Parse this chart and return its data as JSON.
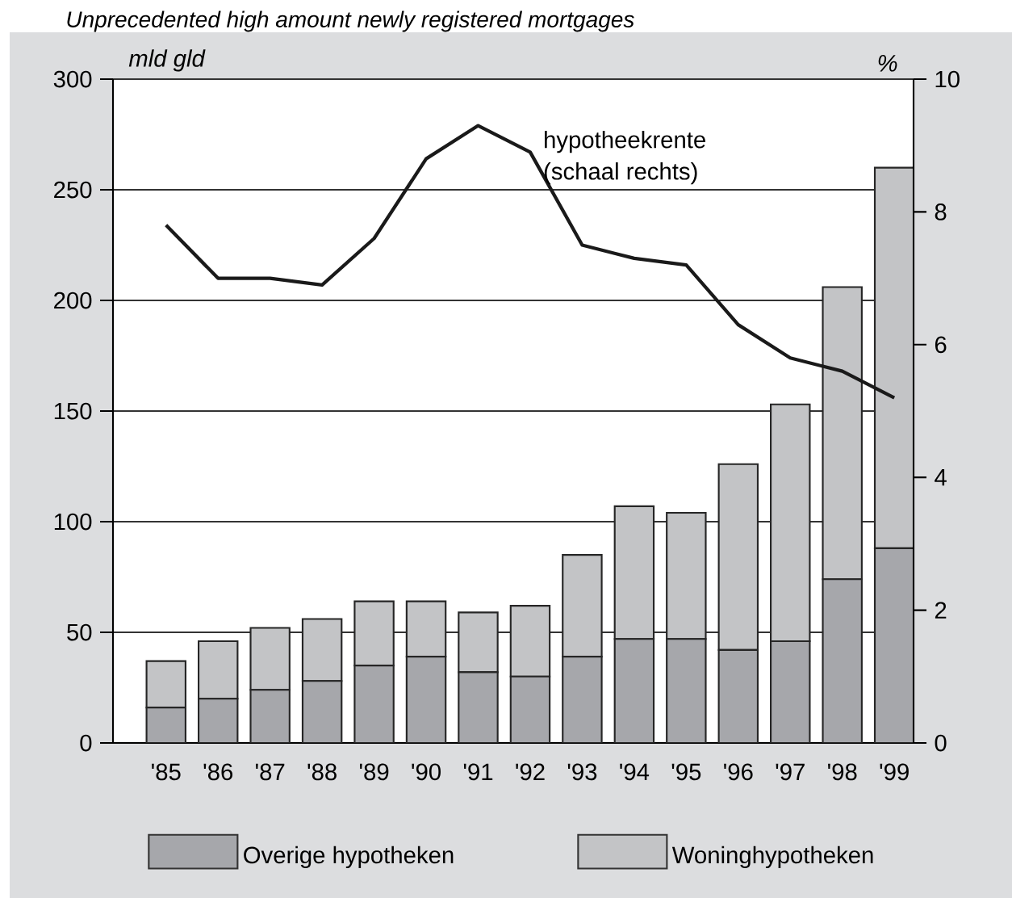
{
  "chart_data": {
    "type": "bar",
    "title": "Unprecedented high amount newly registered mortgages",
    "categories": [
      "'85",
      "'86",
      "'87",
      "'88",
      "'89",
      "'90",
      "'91",
      "'92",
      "'93",
      "'94",
      "'95",
      "'96",
      "'97",
      "'98",
      "'99"
    ],
    "stacked": true,
    "ylabel": "mld gld",
    "y2label": "%",
    "ylim": [
      0,
      300
    ],
    "yticks": [
      0,
      50,
      100,
      150,
      200,
      250,
      300
    ],
    "y2lim": [
      0,
      10
    ],
    "y2ticks": [
      0,
      2,
      4,
      6,
      8,
      10
    ],
    "grid": "y",
    "legend": "bottom",
    "annotations": [
      "(schaal rechts)"
    ],
    "series": [
      {
        "name": "Overige hypotheken",
        "color": "#a6a7ab",
        "values": [
          16,
          20,
          24,
          28,
          35,
          39,
          32,
          30,
          39,
          47,
          47,
          42,
          46,
          74,
          88
        ]
      },
      {
        "name": "Woninghypotheken",
        "color": "#c3c4c6",
        "values": [
          21,
          26,
          28,
          28,
          29,
          25,
          27,
          32,
          46,
          60,
          57,
          84,
          107,
          132,
          172
        ]
      },
      {
        "name": "hypotheekrente",
        "type": "line",
        "axis": "y2",
        "color": "#1a1a1a",
        "values": [
          7.8,
          7.0,
          7.0,
          6.9,
          7.6,
          8.8,
          9.3,
          8.9,
          7.5,
          7.3,
          7.2,
          6.3,
          5.8,
          5.6,
          5.2
        ]
      }
    ]
  }
}
